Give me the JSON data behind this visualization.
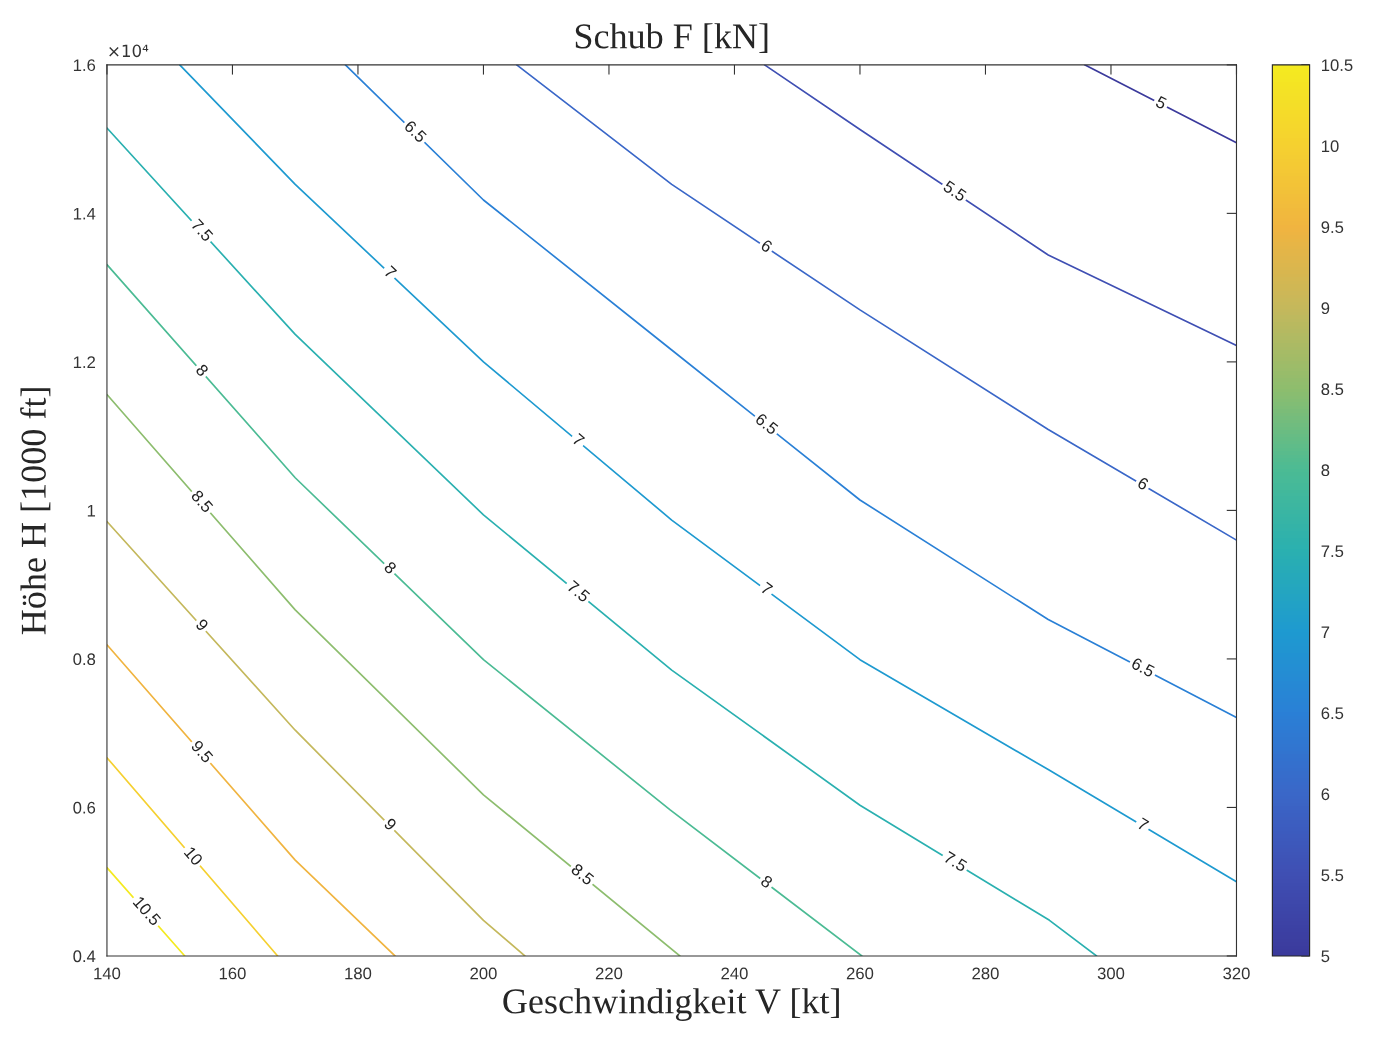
{
  "chart_data": {
    "type": "line",
    "title": "Schub F [kN]",
    "xlabel": "Geschwindigkeit V [kt]",
    "ylabel": "Höhe H [1000 ft]",
    "annotations": [
      "×10⁴"
    ],
    "xlim": [
      140,
      320
    ],
    "xticks": [
      140,
      160,
      180,
      200,
      220,
      240,
      260,
      280,
      300,
      320
    ],
    "ylim": [
      0.4,
      1.6
    ],
    "yticks": [
      0.4,
      0.6,
      0.8,
      1,
      1.2,
      1.4,
      1.6
    ],
    "clim": [
      5,
      10.5
    ],
    "cticks": [
      5,
      5.5,
      6,
      6.5,
      7,
      7.5,
      8,
      8.5,
      9,
      9.5,
      10,
      10.5
    ],
    "grid": false,
    "legend": false,
    "marker": "none",
    "line_style": "solid",
    "series": [
      {
        "name": "5",
        "color": "#3b3a9c",
        "x": [
          295.8,
          320
        ],
        "values": [
          1.6,
          1.495
        ]
      },
      {
        "name": "5.5",
        "color": "#3f4fb3",
        "x": [
          244.8,
          260,
          290,
          320
        ],
        "values": [
          1.6,
          1.513,
          1.344,
          1.222
        ]
      },
      {
        "name": "6",
        "color": "#3a67c8",
        "x": [
          205.3,
          230,
          260,
          290,
          320
        ],
        "values": [
          1.6,
          1.439,
          1.27,
          1.109,
          0.96
        ]
      },
      {
        "name": "6.5",
        "color": "#2a80d6",
        "x": [
          178,
          200,
          230,
          260,
          290,
          320
        ],
        "values": [
          1.6,
          1.418,
          1.216,
          1.014,
          0.853,
          0.721
        ]
      },
      {
        "name": "7",
        "color": "#1e9ad0",
        "x": [
          151.6,
          170,
          200,
          230,
          260,
          290,
          320
        ],
        "values": [
          1.6,
          1.439,
          1.2,
          0.987,
          0.799,
          0.651,
          0.5
        ]
      },
      {
        "name": "7.5",
        "color": "#2ab0b0",
        "x": [
          140,
          170,
          200,
          230,
          260,
          290.2,
          297.7
        ],
        "values": [
          1.515,
          1.237,
          0.994,
          0.785,
          0.603,
          0.448,
          0.4
        ]
      },
      {
        "name": "8",
        "color": "#4bbb94",
        "x": [
          140,
          170,
          200,
          229.7,
          260.3
        ],
        "values": [
          1.331,
          1.044,
          0.799,
          0.597,
          0.4
        ]
      },
      {
        "name": "8.5",
        "color": "#8dbd6e",
        "x": [
          140,
          170,
          200,
          231.3
        ],
        "values": [
          1.156,
          0.866,
          0.617,
          0.4
        ]
      },
      {
        "name": "9",
        "color": "#c4b85c",
        "x": [
          140,
          170,
          200,
          206.6
        ],
        "values": [
          0.985,
          0.704,
          0.448,
          0.4
        ]
      },
      {
        "name": "9.5",
        "color": "#f0b440",
        "x": [
          140,
          170,
          185.9
        ],
        "values": [
          0.819,
          0.529,
          0.4
        ]
      },
      {
        "name": "10",
        "color": "#f5d030",
        "x": [
          140,
          167.2
        ],
        "values": [
          0.667,
          0.4
        ]
      },
      {
        "name": "10.5",
        "color": "#f4ea20",
        "x": [
          140,
          152.4
        ],
        "values": [
          0.519,
          0.4
        ]
      }
    ]
  }
}
